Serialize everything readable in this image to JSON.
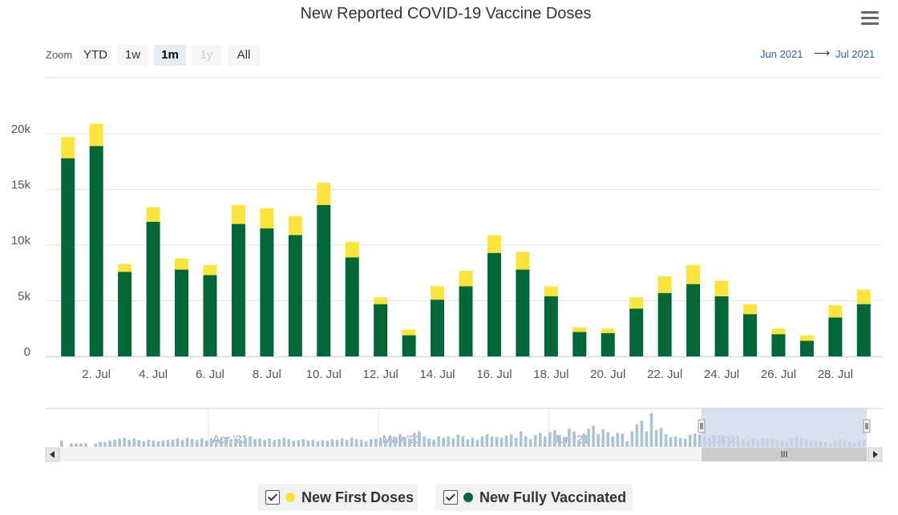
{
  "title": "New Reported COVID-19 Vaccine Doses",
  "menu_icon": "hamburger-menu-icon",
  "zoom": {
    "label": "Zoom",
    "buttons": [
      {
        "label": "YTD",
        "state": "normal"
      },
      {
        "label": "1w",
        "state": "normal"
      },
      {
        "label": "1m",
        "state": "active"
      },
      {
        "label": "1y",
        "state": "disabled"
      },
      {
        "label": "All",
        "state": "normal"
      }
    ]
  },
  "range": {
    "from": "Jun 2021",
    "arrow": "⟶",
    "to": "Jul 2021"
  },
  "colors": {
    "first_doses": "#fce43b",
    "fully_vaccinated": "#006837",
    "navigator_series": "#a9c4d8",
    "navigator_mask": "#ccd6eb"
  },
  "chart_data": {
    "type": "bar",
    "stacked": true,
    "x": [
      "1 Jul",
      "2 Jul",
      "3 Jul",
      "4 Jul",
      "5 Jul",
      "6 Jul",
      "7 Jul",
      "8 Jul",
      "9 Jul",
      "10 Jul",
      "11 Jul",
      "12 Jul",
      "13 Jul",
      "14 Jul",
      "15 Jul",
      "16 Jul",
      "17 Jul",
      "18 Jul",
      "19 Jul",
      "20 Jul",
      "21 Jul",
      "22 Jul",
      "23 Jul",
      "24 Jul",
      "25 Jul",
      "26 Jul",
      "27 Jul",
      "28 Jul",
      "29 Jul"
    ],
    "x_tick_labels": [
      "2. Jul",
      "4. Jul",
      "6. Jul",
      "8. Jul",
      "10. Jul",
      "12. Jul",
      "14. Jul",
      "16. Jul",
      "18. Jul",
      "20. Jul",
      "22. Jul",
      "24. Jul",
      "26. Jul",
      "28. Jul"
    ],
    "series": [
      {
        "name": "New Fully Vaccinated",
        "color": "#006837",
        "values": [
          17800,
          18900,
          7600,
          12100,
          7800,
          7300,
          11900,
          11500,
          10900,
          13600,
          8900,
          4700,
          1900,
          5100,
          6300,
          9300,
          7800,
          5400,
          2200,
          2100,
          4300,
          5700,
          6500,
          5400,
          3800,
          2000,
          1400,
          3500,
          4700
        ]
      },
      {
        "name": "New First Doses",
        "color": "#fce43b",
        "values": [
          1900,
          2000,
          700,
          1300,
          1000,
          900,
          1700,
          1800,
          1700,
          2000,
          1400,
          600,
          500,
          1200,
          1400,
          1600,
          1600,
          900,
          400,
          400,
          1000,
          1500,
          1700,
          1400,
          900,
          500,
          500,
          1100,
          1300
        ]
      }
    ],
    "y_ticks": [
      "0",
      "5k",
      "10k",
      "15k",
      "20k"
    ],
    "ylim": [
      0,
      22000
    ],
    "grid": true,
    "legend": {
      "position": "bottom-center",
      "items": [
        {
          "label": "New First Doses",
          "color": "#fce43b"
        },
        {
          "label": "New Fully Vaccinated",
          "color": "#006837"
        }
      ]
    },
    "navigator": {
      "labels": [
        "Apr '21",
        "May '21",
        "Jun '21",
        "Jul '21"
      ],
      "values": [
        0.18,
        0,
        0.1,
        0.1,
        0.1,
        0.1,
        0,
        0.1,
        0.14,
        0.14,
        0.18,
        0.2,
        0.24,
        0.26,
        0.2,
        0.24,
        0.2,
        0.16,
        0.2,
        0.18,
        0.16,
        0.18,
        0.2,
        0.2,
        0.24,
        0.2,
        0.26,
        0.22,
        0.2,
        0.24,
        0.18,
        0.24,
        0.2,
        0.24,
        0.28,
        0.22,
        0.24,
        0.2,
        0.26,
        0.3,
        0.22,
        0.24,
        0.2,
        0.24,
        0.2,
        0.22,
        0.26,
        0.22,
        0.18,
        0.2,
        0.22,
        0.18,
        0.2,
        0.16,
        0.2,
        0.18,
        0.22,
        0.2,
        0.24,
        0.2,
        0.26,
        0.22,
        0.2,
        0.16,
        0.22,
        0.24,
        0.26,
        0.2,
        0.3,
        0.24,
        0.36,
        0.28,
        0.24,
        0.4,
        0.44,
        0.3,
        0.24,
        0.2,
        0.3,
        0.26,
        0.3,
        0.24,
        0.34,
        0.3,
        0.22,
        0.26,
        0.2,
        0.3,
        0.36,
        0.3,
        0.28,
        0.26,
        0.32,
        0.36,
        0.26,
        0.44,
        0.3,
        0.22,
        0.34,
        0.4,
        0.3,
        0.42,
        0.48,
        0.34,
        0.28,
        0.52,
        0.44,
        0.18,
        0.38,
        0.52,
        0.6,
        0.36,
        0.5,
        0.42,
        0.3,
        0.4,
        0.38,
        0.16,
        0.44,
        0.64,
        0.74,
        0.44,
        0.96,
        0.48,
        0.54,
        0.36,
        0.28,
        0.3,
        0.26,
        0.24,
        0.34,
        0.38,
        0.36,
        0.3,
        0.26,
        0.34,
        0.32,
        0.32,
        0.3,
        0.26,
        0.18,
        0.22,
        0.18,
        0.24,
        0.2,
        0.26,
        0.24,
        0.22,
        0.2,
        0.18,
        0.16,
        0.24,
        0.3,
        0.26,
        0.22,
        0.2,
        0.18,
        0.16,
        0.14,
        0.1,
        0.18,
        0.22,
        0.18,
        0.14,
        0.1,
        0.16,
        0.2
      ],
      "selected_range": [
        "1 Jul",
        "29 Jul"
      ]
    }
  }
}
